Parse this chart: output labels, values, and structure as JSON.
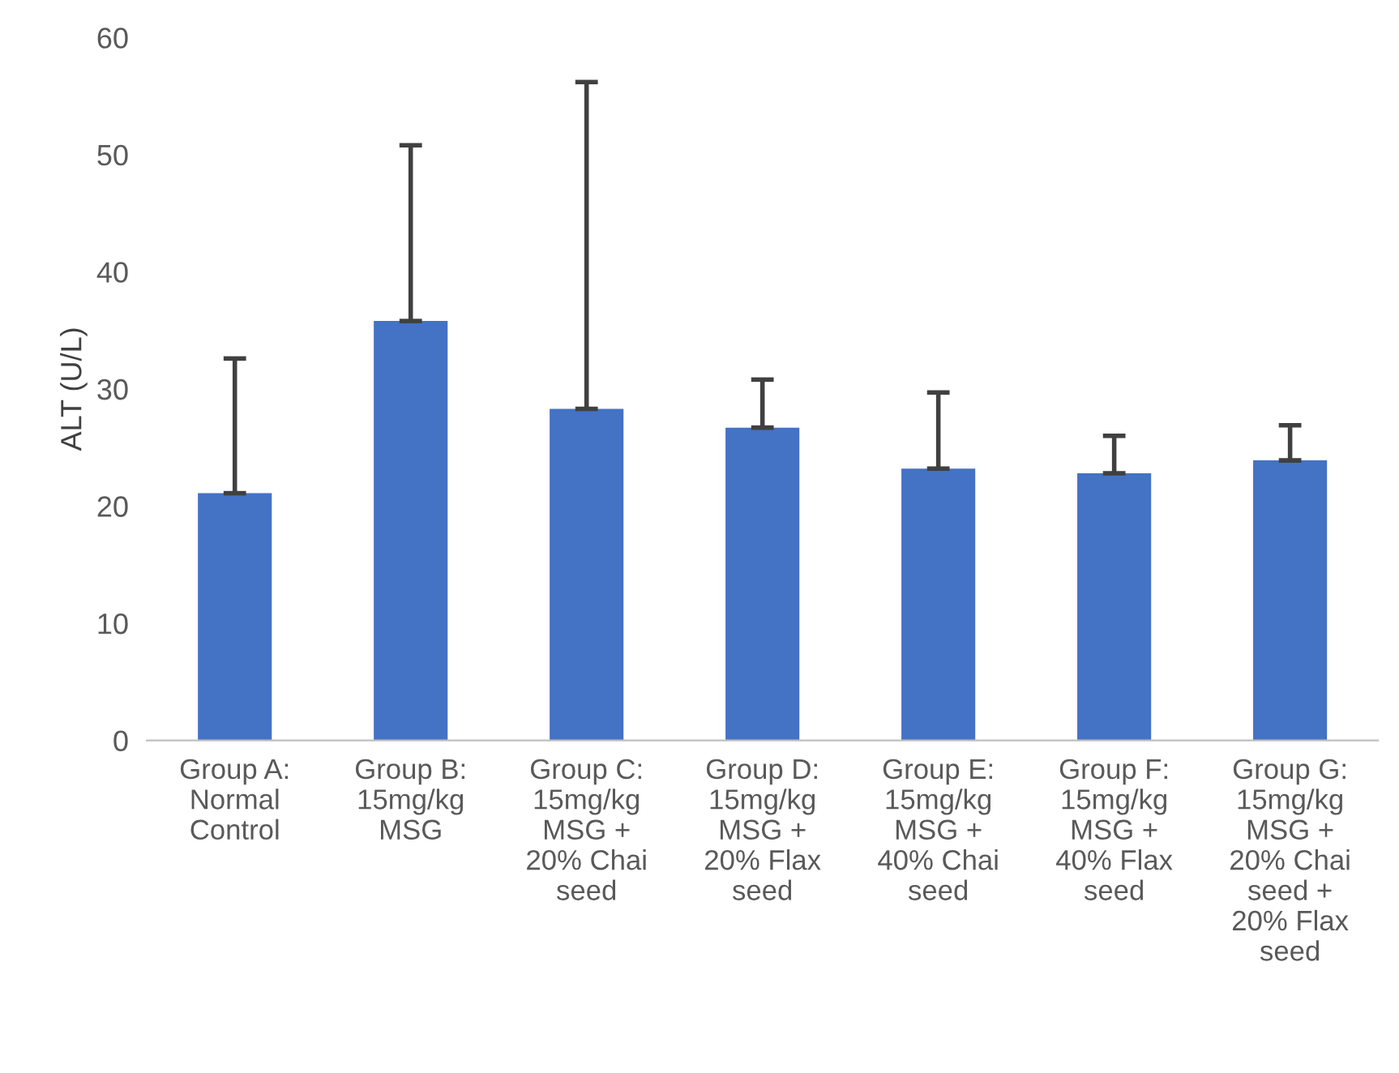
{
  "chart_data": {
    "type": "bar",
    "ylabel": "ALT (U/L)",
    "categories": [
      "Group A:\nNormal\nControl",
      "Group B:\n15mg/kg\nMSG",
      "Group C:\n15mg/kg\nMSG +\n20% Chai\nseed",
      "Group D:\n15mg/kg\nMSG +\n20% Flax\nseed",
      "Group E:\n15mg/kg\nMSG +\n40% Chai\nseed",
      "Group F:\n15mg/kg\nMSG +\n40% Flax\nseed",
      "Group G:\n15mg/kg\nMSG +\n20% Chai\nseed +\n20% Flax\nseed"
    ],
    "values": [
      21.1,
      35.8,
      28.3,
      26.7,
      23.2,
      22.8,
      23.9
    ],
    "errors": [
      [
        21.1,
        32.6
      ],
      [
        35.8,
        50.8
      ],
      [
        28.3,
        56.2
      ],
      [
        26.7,
        30.8
      ],
      [
        23.2,
        29.7
      ],
      [
        22.8,
        26.0
      ],
      [
        23.9,
        26.9
      ]
    ],
    "color": "#4472c4",
    "ylim": [
      0,
      60
    ],
    "yticks": [
      0,
      10,
      20,
      30,
      40,
      50,
      60
    ],
    "grid": false,
    "legend": false
  }
}
